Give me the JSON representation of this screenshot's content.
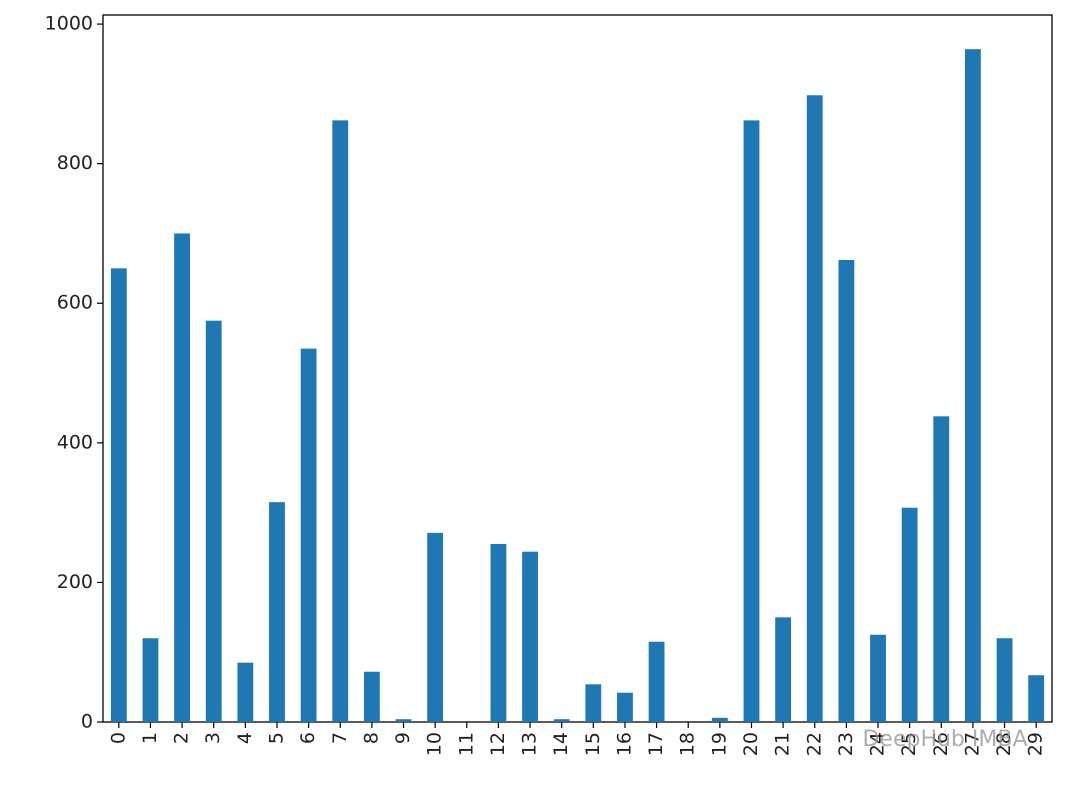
{
  "chart_data": {
    "type": "bar",
    "categories": [
      "0",
      "1",
      "2",
      "3",
      "4",
      "5",
      "6",
      "7",
      "8",
      "9",
      "10",
      "11",
      "12",
      "13",
      "14",
      "15",
      "16",
      "17",
      "18",
      "19",
      "20",
      "21",
      "22",
      "23",
      "24",
      "25",
      "26",
      "27",
      "28",
      "29"
    ],
    "values": [
      650,
      120,
      700,
      575,
      85,
      315,
      535,
      862,
      72,
      4,
      271,
      0,
      255,
      244,
      4,
      54,
      42,
      115,
      0,
      6,
      862,
      150,
      898,
      662,
      125,
      307,
      438,
      964,
      120,
      67
    ],
    "color": "#1f77b4",
    "ylim": [
      0,
      1013
    ],
    "yticks": [
      0,
      200,
      400,
      600,
      800,
      1000
    ],
    "grid": false,
    "watermark": "DeepHub IMBA"
  }
}
